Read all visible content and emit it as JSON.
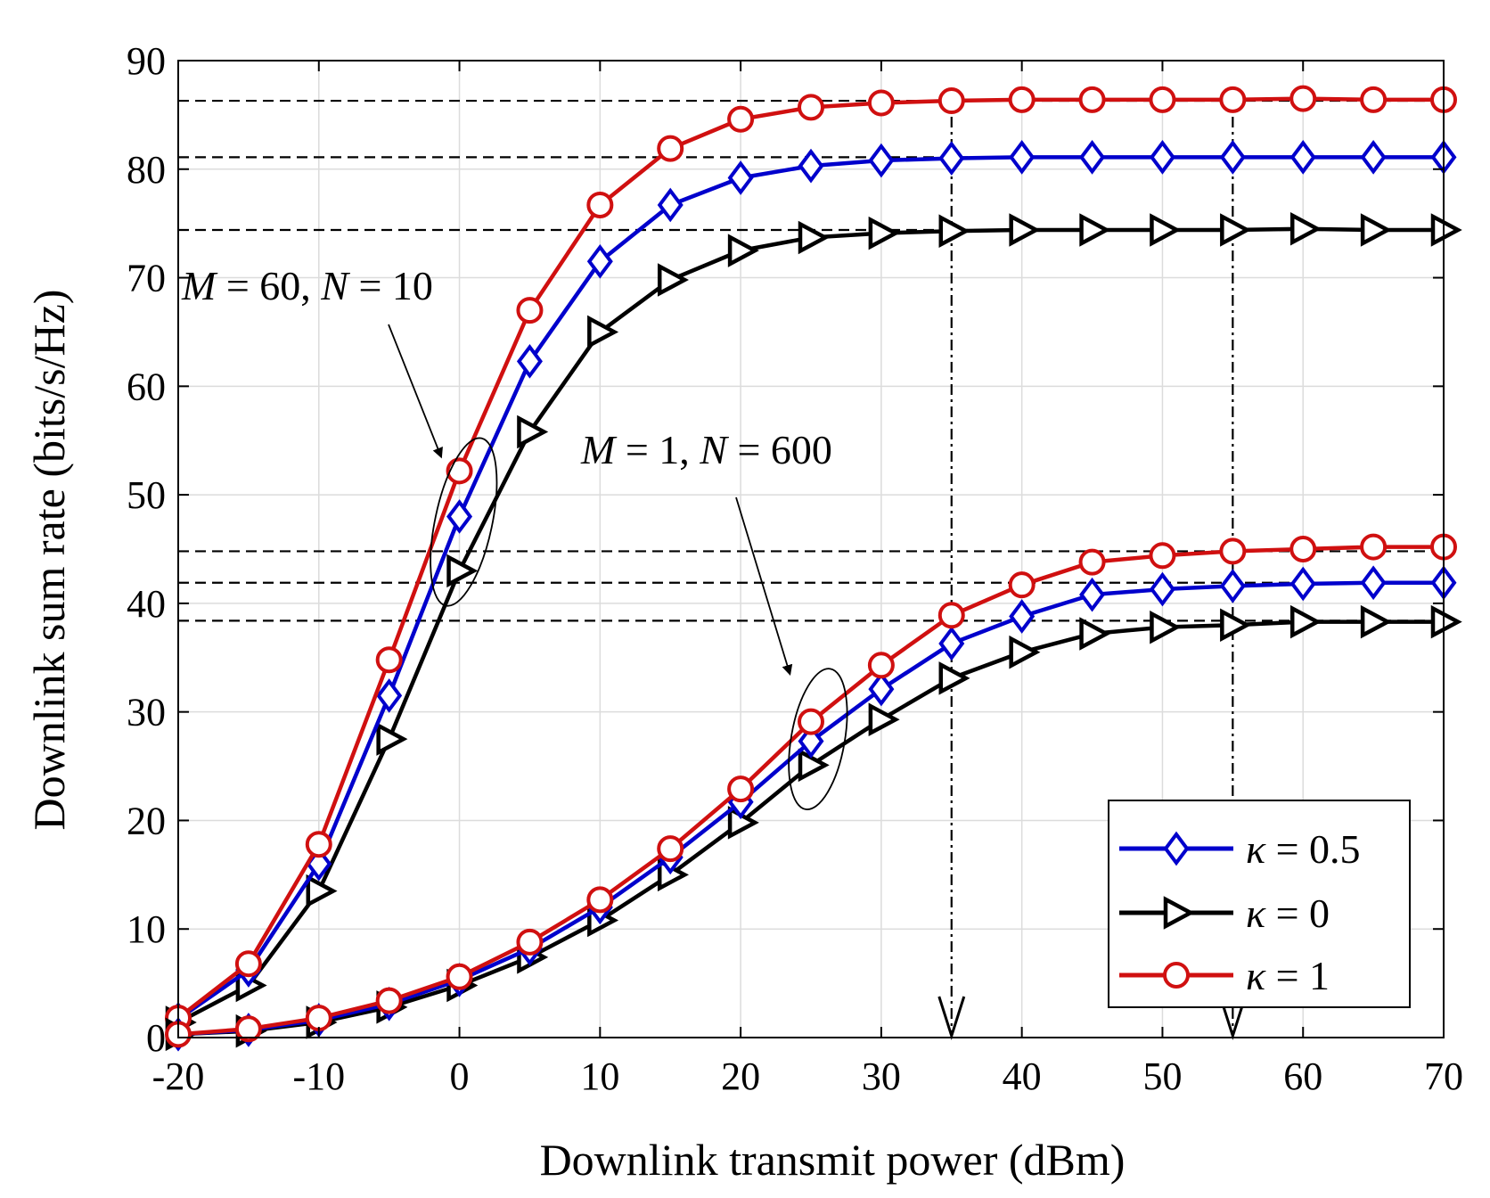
{
  "chart_data": {
    "type": "line",
    "title": "",
    "xlabel": "Downlink transmit power (dBm)",
    "ylabel": "Downlink sum rate (bits/s/Hz)",
    "xlim": [
      -20,
      70
    ],
    "ylim": [
      0,
      90
    ],
    "xticks": [
      -20,
      -10,
      0,
      10,
      20,
      30,
      40,
      50,
      60,
      70
    ],
    "yticks": [
      0,
      10,
      20,
      30,
      40,
      50,
      60,
      70,
      80,
      90
    ],
    "xtick_labels": [
      "-20",
      "-10",
      "0",
      "10",
      "20",
      "30",
      "40",
      "50",
      "60",
      "70"
    ],
    "ytick_labels": [
      "0",
      "10",
      "20",
      "30",
      "40",
      "50",
      "60",
      "70",
      "80",
      "90"
    ],
    "grid": true,
    "legend_position": "bottom-right",
    "x": [
      -20,
      -15,
      -10,
      -5,
      0,
      5,
      10,
      15,
      20,
      25,
      30,
      35,
      40,
      45,
      50,
      55,
      60,
      65,
      70
    ],
    "series": [
      {
        "name": "κ = 0.5",
        "symbol": "κ",
        "value_text": "= 0.5",
        "color": "#0000cc",
        "marker": "diamond",
        "group": "M = 60, N = 10",
        "values": [
          1.7,
          6.2,
          16.0,
          31.5,
          48.0,
          62.3,
          71.5,
          76.7,
          79.2,
          80.3,
          80.8,
          81.0,
          81.1,
          81.1,
          81.1,
          81.1,
          81.1,
          81.1,
          81.1
        ]
      },
      {
        "name": "κ = 0",
        "symbol": "κ",
        "value_text": "= 0",
        "color": "#000000",
        "marker": "triangle-right",
        "group": "M = 60, N = 10",
        "values": [
          1.4,
          4.8,
          13.5,
          27.5,
          43.0,
          55.8,
          65.0,
          69.8,
          72.5,
          73.7,
          74.1,
          74.3,
          74.4,
          74.4,
          74.4,
          74.4,
          74.5,
          74.4,
          74.4
        ]
      },
      {
        "name": "κ = 1",
        "symbol": "κ",
        "value_text": "= 1",
        "color": "#d01010",
        "marker": "circle",
        "group": "M = 60, N = 10",
        "values": [
          1.8,
          6.8,
          17.8,
          34.8,
          52.2,
          67.0,
          76.7,
          81.9,
          84.6,
          85.7,
          86.1,
          86.3,
          86.4,
          86.4,
          86.4,
          86.4,
          86.5,
          86.4,
          86.4
        ]
      },
      {
        "name": "κ = 0.5",
        "symbol": "κ",
        "value_text": "= 0.5",
        "color": "#0000cc",
        "marker": "diamond",
        "group": "M = 1, N = 600",
        "values": [
          0.3,
          0.7,
          1.6,
          3.1,
          5.3,
          8.2,
          12.0,
          16.6,
          21.7,
          27.3,
          32.1,
          36.3,
          38.8,
          40.8,
          41.3,
          41.6,
          41.8,
          41.9,
          41.9
        ]
      },
      {
        "name": "κ = 0",
        "symbol": "κ",
        "value_text": "= 0",
        "color": "#000000",
        "marker": "triangle-right",
        "group": "M = 1, N = 600",
        "values": [
          0.3,
          0.6,
          1.4,
          2.8,
          4.8,
          7.4,
          10.8,
          15.0,
          19.8,
          25.1,
          29.3,
          33.1,
          35.5,
          37.2,
          37.8,
          38.0,
          38.3,
          38.3,
          38.3
        ]
      },
      {
        "name": "κ = 1",
        "symbol": "κ",
        "value_text": "= 1",
        "color": "#d01010",
        "marker": "circle",
        "group": "M = 1, N = 600",
        "values": [
          0.3,
          0.8,
          1.8,
          3.4,
          5.6,
          8.8,
          12.7,
          17.4,
          22.9,
          29.1,
          34.3,
          38.9,
          41.7,
          43.8,
          44.4,
          44.8,
          45.0,
          45.2,
          45.2
        ]
      }
    ],
    "reference_lines_y": [
      86.3,
      81.1,
      74.4,
      44.8,
      41.9,
      38.4
    ],
    "reference_arrows_x": [
      35,
      55
    ],
    "annotations": [
      {
        "name": "group-high",
        "italic1": "M",
        "text1": " = 60, ",
        "italic2": "N",
        "text2": " = 10",
        "arrow_to_x": -1.3,
        "arrow_to_y": 53.5
      },
      {
        "name": "group-low",
        "italic1": "M",
        "text1": " = 1, ",
        "italic2": "N",
        "text2": " = 600",
        "arrow_to_x": 23.5,
        "arrow_to_y": 33.5
      }
    ]
  }
}
